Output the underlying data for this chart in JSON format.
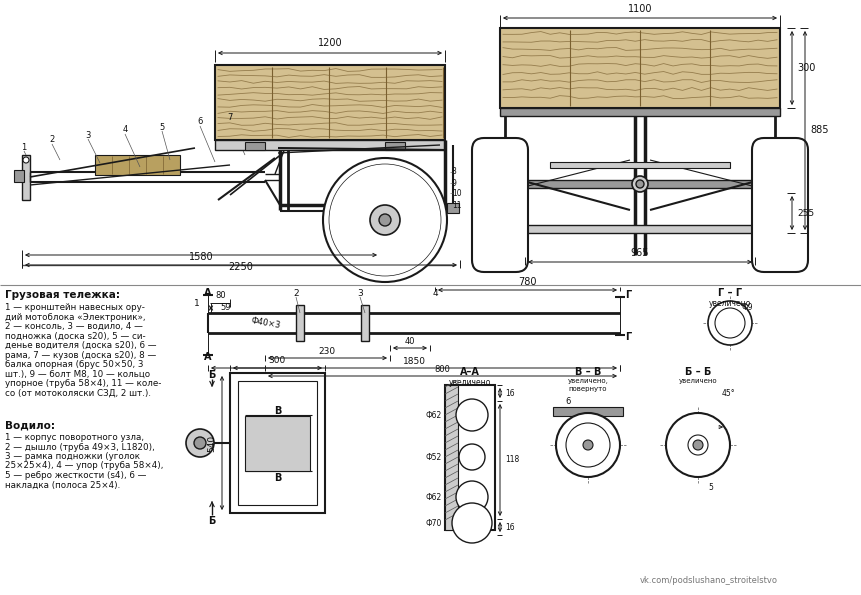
{
  "bg_color": "#ffffff",
  "line_color": "#1a1a1a",
  "wood_light": "#d4c090",
  "wood_mid": "#b8a060",
  "wood_dark": "#7a6030",
  "gray_light": "#cccccc",
  "gray_mid": "#999999",
  "gray_dark": "#555555",
  "dim_color": "#111111",
  "title_text": "Грузовая тележка:",
  "parts_text_lines": [
    "1 — кронштейн навесных ору-",
    "дий мотоблока «Электроник»,",
    "2 — консоль, 3 — водило, 4 —",
    "подножка (доска s20), 5 — си-",
    "денье водителя (доска s20), 6 —",
    "рама, 7 — кузов (доска s20), 8 —",
    "балка опорная (брус 50×50, 3",
    "шт.), 9 — болт M8, 10 — кольцо",
    "упорное (труба 58×4), 11 — коле-",
    "со (от мотоколяски СЗД, 2 шт.)."
  ],
  "vodilo_title": "Водило:",
  "vodilo_text_lines": [
    "1 — корпус поворотного узла,",
    "2 — дышло (труба 49×3, L1820),",
    "3 — рамка подножки (уголок",
    "25×25×4), 4 — упор (труба 58×4),",
    "5 — ребро жесткости (s4), 6 —",
    "накладка (полоса 25×4)."
  ],
  "watermark": "vk.com/podslushano_stroitelstvo"
}
